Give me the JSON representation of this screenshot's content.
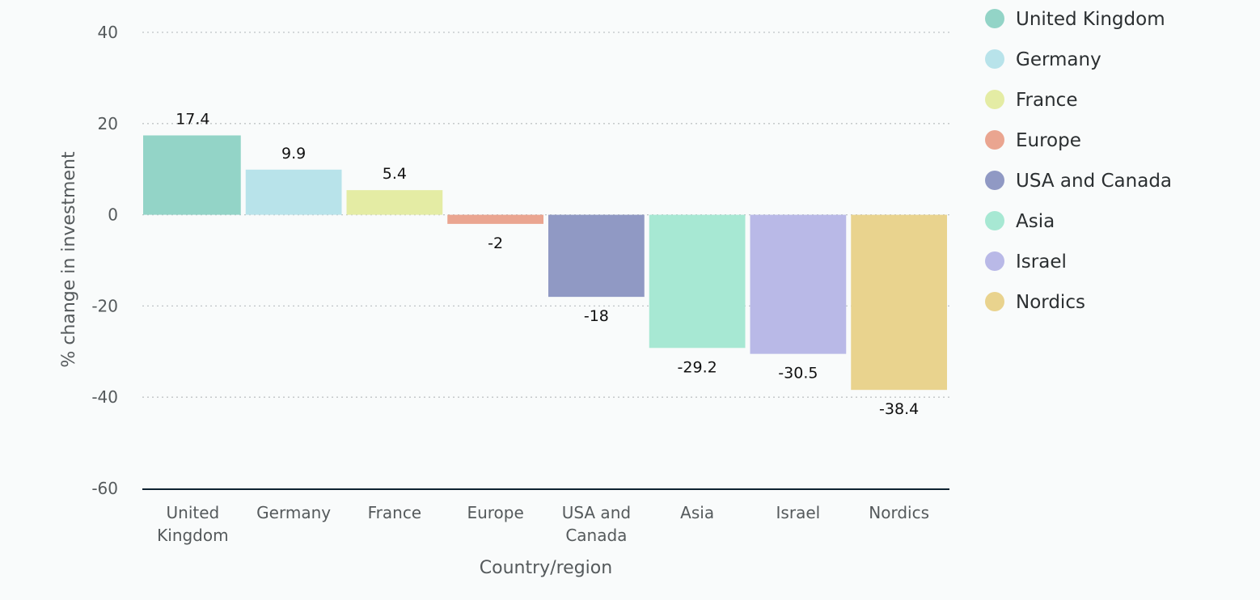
{
  "colors": {
    "background": "#f9fbfb",
    "gridline": "#bfc4c6",
    "baseline": "#0e2230"
  },
  "chart_data": {
    "type": "bar",
    "title": "",
    "xlabel": "Country/region",
    "ylabel": "% change in investment",
    "ylim": [
      -60,
      40
    ],
    "yticks": [
      40,
      20,
      0,
      -20,
      -40,
      -60
    ],
    "grid": true,
    "legend_position": "right",
    "categories": [
      "United Kingdom",
      "Germany",
      "France",
      "Europe",
      "USA and Canada",
      "Asia",
      "Israel",
      "Nordics"
    ],
    "category_tick_lines": [
      [
        "United",
        "Kingdom"
      ],
      [
        "Germany"
      ],
      [
        "France"
      ],
      [
        "Europe"
      ],
      [
        "USA and",
        "Canada"
      ],
      [
        "Asia"
      ],
      [
        "Israel"
      ],
      [
        "Nordics"
      ]
    ],
    "values": [
      17.4,
      9.9,
      5.4,
      -2,
      -18,
      -29.2,
      -30.5,
      -38.4
    ],
    "value_labels": [
      "17.4",
      "9.9",
      "5.4",
      "-2",
      "-18",
      "-29.2",
      "-30.5",
      "-38.4"
    ],
    "colors": [
      "#93d4c7",
      "#b8e3ea",
      "#e4eca4",
      "#eaa590",
      "#9099c4",
      "#a7e8d3",
      "#b9b9e7",
      "#e9d38e"
    ],
    "legend": [
      "United Kingdom",
      "Germany",
      "France",
      "Europe",
      "USA and Canada",
      "Asia",
      "Israel",
      "Nordics"
    ]
  }
}
